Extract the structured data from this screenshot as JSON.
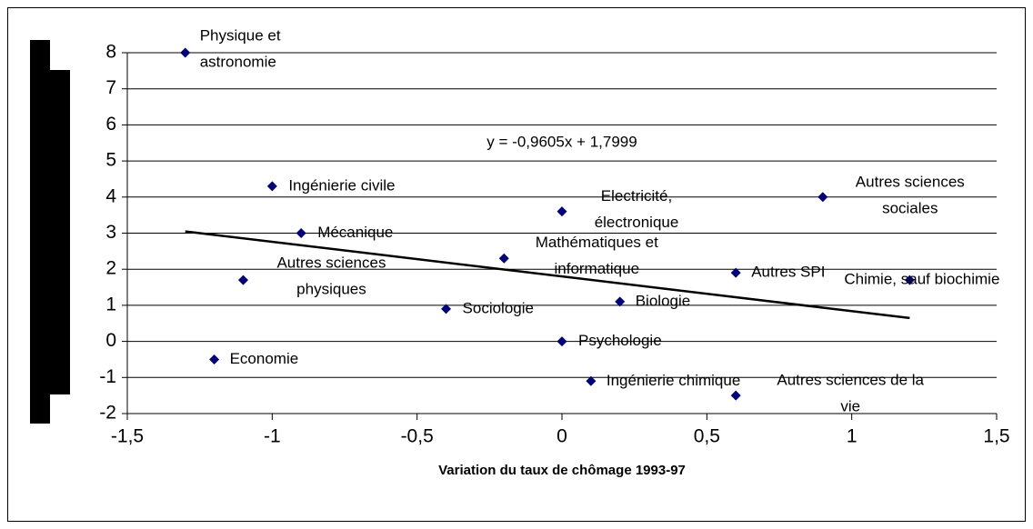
{
  "chart_data": {
    "type": "scatter",
    "x_label": "Variation du taux de chômage 1993-97",
    "annotation": "y = -0,9605x + 1,7999",
    "trendline": {
      "slope": -0.9605,
      "intercept": 1.7999,
      "x": [
        -1.3,
        1.2
      ]
    },
    "color": "#000080",
    "grid": true,
    "xlim": [
      -1.5,
      1.5
    ],
    "xticks": [
      {
        "value": -1.5,
        "label": "-1,5"
      },
      -1,
      {
        "value": -0.5,
        "label": "-0,5"
      },
      0,
      {
        "value": 0.5,
        "label": "0,5"
      },
      1,
      {
        "value": 1.5,
        "label": "1,5"
      }
    ],
    "ylim": [
      -2,
      8
    ],
    "yticks": [
      -2,
      -1,
      0,
      1,
      2,
      3,
      4,
      5,
      6,
      7,
      8
    ],
    "labels": [
      [
        "Physique et",
        "astronomie"
      ],
      [
        "Ingénierie civile"
      ],
      [
        "Mécanique"
      ],
      [
        "Autres sciences",
        "physiques"
      ],
      [
        "Economie"
      ],
      [
        "Sociologie"
      ],
      [
        "Mathématiques et",
        "informatique"
      ],
      [
        "Electricité,",
        "électronique"
      ],
      [
        "Psychologie"
      ],
      [
        "Ingénierie chimique"
      ],
      [
        "Biologie"
      ],
      [
        "Autres SPI"
      ],
      [
        "Autres sciences de la",
        "vie"
      ],
      [
        "Autres sciences",
        "sociales"
      ],
      [
        "Chimie, sauf biochimie"
      ]
    ],
    "x": [
      -1.3,
      -1.0,
      -0.9,
      -1.1,
      -1.2,
      -0.4,
      -0.2,
      0,
      0,
      0.1,
      0.2,
      0.6,
      0.6,
      0.9,
      1.2
    ],
    "values": [
      8,
      4.3,
      3.0,
      1.7,
      -0.5,
      0.9,
      2.3,
      3.6,
      0,
      -1.1,
      1.1,
      1.9,
      -1.5,
      4.0,
      1.7
    ]
  }
}
